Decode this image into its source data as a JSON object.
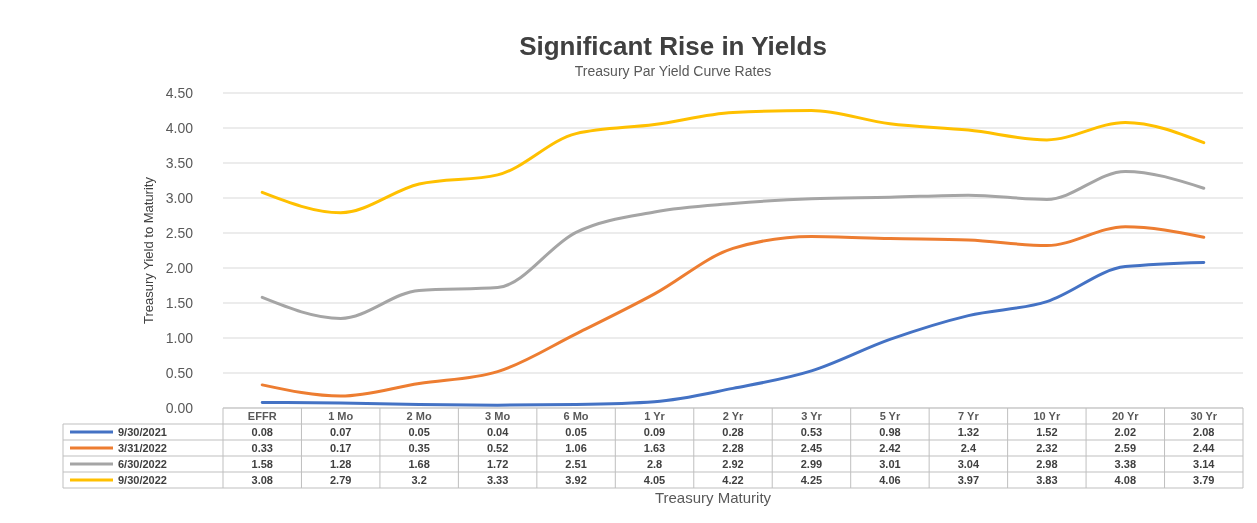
{
  "chart_data": {
    "type": "line",
    "title": "Significant Rise in Yields",
    "subtitle": "Treasury Par Yield Curve Rates",
    "xlabel": "Treasury Maturity",
    "ylabel": "Treasury Yield to Maturity",
    "categories": [
      "EFFR",
      "1 Mo",
      "2 Mo",
      "3 Mo",
      "6 Mo",
      "1 Yr",
      "2 Yr",
      "3 Yr",
      "5 Yr",
      "7 Yr",
      "10 Yr",
      "20 Yr",
      "30 Yr"
    ],
    "series": [
      {
        "name": "9/30/2021",
        "color": "#4472c4",
        "values": [
          0.08,
          0.07,
          0.05,
          0.04,
          0.05,
          0.09,
          0.28,
          0.53,
          0.98,
          1.32,
          1.52,
          2.02,
          2.08
        ]
      },
      {
        "name": "3/31/2022",
        "color": "#ed7d31",
        "values": [
          0.33,
          0.17,
          0.35,
          0.52,
          1.06,
          1.63,
          2.28,
          2.45,
          2.42,
          2.4,
          2.32,
          2.59,
          2.44
        ]
      },
      {
        "name": "6/30/2022",
        "color": "#a5a5a5",
        "values": [
          1.58,
          1.28,
          1.68,
          1.72,
          2.51,
          2.8,
          2.92,
          2.99,
          3.01,
          3.04,
          2.98,
          3.38,
          3.14
        ]
      },
      {
        "name": "9/30/2022",
        "color": "#ffc000",
        "values": [
          3.08,
          2.79,
          3.2,
          3.33,
          3.92,
          4.05,
          4.22,
          4.25,
          4.06,
          3.97,
          3.83,
          4.08,
          3.79
        ]
      }
    ],
    "ylim": [
      0,
      4.5
    ],
    "yticks": [
      {
        "value": 0,
        "label": "0.00"
      },
      {
        "value": 0.5,
        "label": "0.50"
      },
      {
        "value": 1,
        "label": "1.00"
      },
      {
        "value": 1.5,
        "label": "1.50"
      },
      {
        "value": 2,
        "label": "2.00"
      },
      {
        "value": 2.5,
        "label": "2.50"
      },
      {
        "value": 3,
        "label": "3.00"
      },
      {
        "value": 3.5,
        "label": "3.50"
      },
      {
        "value": 4,
        "label": "4.00"
      },
      {
        "value": 4.5,
        "label": "4.50"
      }
    ],
    "grid": "y",
    "legend": "bottom",
    "data_labels": true,
    "line_style": "solid",
    "marker": "none"
  }
}
